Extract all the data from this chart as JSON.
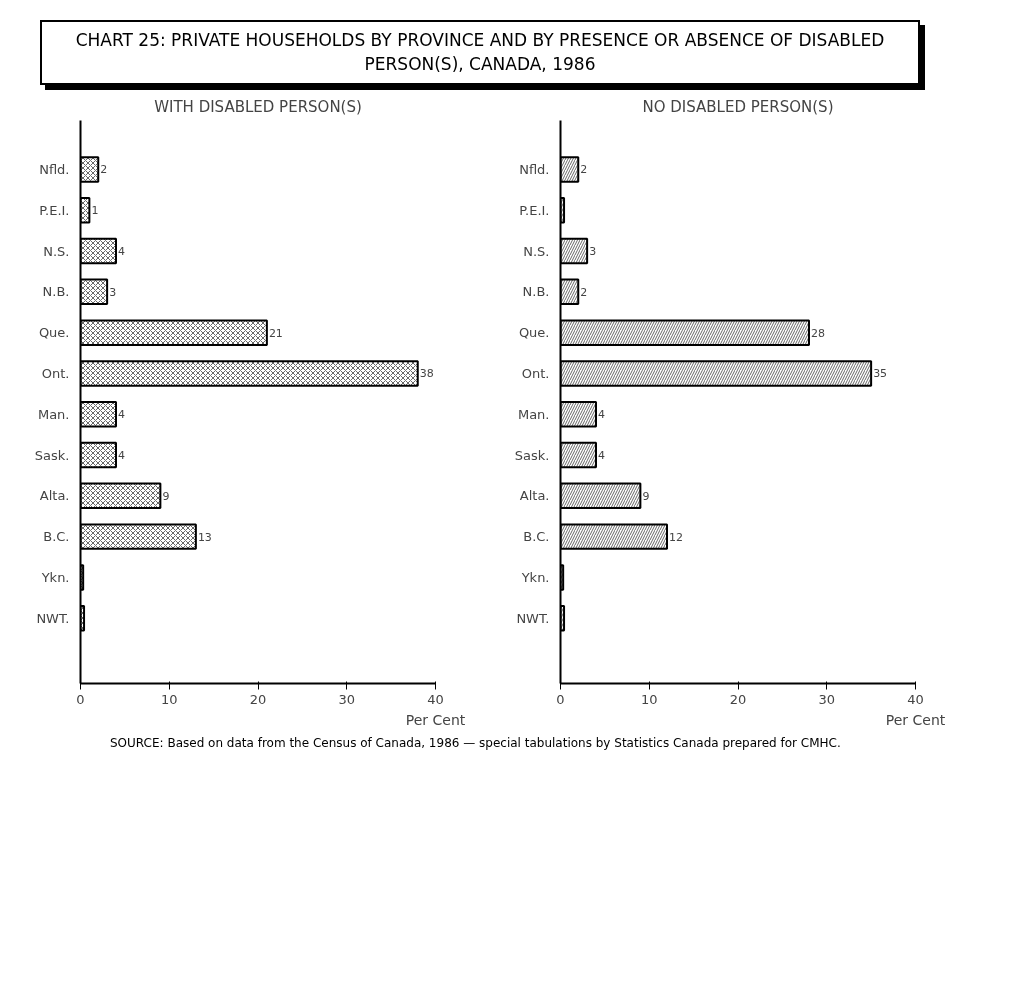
{
  "chart_data": [
    {
      "type": "bar",
      "orientation": "horizontal",
      "title": "WITH DISABLED PERSON(S)",
      "xlabel": "Per Cent",
      "categories": [
        "Nfld.",
        "P.E.I.",
        "N.S.",
        "N.B.",
        "Que.",
        "Ont.",
        "Man.",
        "Sask.",
        "Alta.",
        "B.C.",
        "Ykn.",
        "NWT."
      ],
      "values": [
        2,
        1,
        4,
        3,
        21,
        38,
        4,
        4,
        9,
        13,
        0.3,
        0.4
      ],
      "value_labels": [
        "2",
        "1",
        "4",
        "3",
        "21",
        "38",
        "4",
        "4",
        "9",
        "13",
        null,
        null
      ],
      "color": "#000000",
      "xlim": [
        0,
        40
      ],
      "xticks": [
        0,
        10,
        20,
        30,
        40
      ],
      "grid": false,
      "annotations": [
        "CHART 25: PRIVATE HOUSEHOLDS BY PROVINCE AND BY PRESENCE OR ABSENCE OF DISABLED PERSON(S), CANADA, 1986",
        "SOURCE: Based on data from the Census of Canada, 1986 — special tabulations by Statistics Canada prepared for CMHC."
      ]
    },
    {
      "type": "bar",
      "orientation": "horizontal",
      "title": "NO DISABLED PERSON(S)",
      "xlabel": "Per Cent",
      "categories": [
        "Nfld.",
        "P.E.I.",
        "N.S.",
        "N.B.",
        "Que.",
        "Ont.",
        "Man.",
        "Sask.",
        "Alta.",
        "B.C.",
        "Ykn.",
        "NWT."
      ],
      "values": [
        2,
        0.4,
        3,
        2,
        28,
        35,
        4,
        4,
        9,
        12,
        0.3,
        0.4
      ],
      "value_labels": [
        "2",
        null,
        "3",
        "2",
        "28",
        "35",
        "4",
        "4",
        "9",
        "12",
        null,
        null
      ],
      "color": "#000000",
      "xlim": [
        0,
        40
      ],
      "xticks": [
        0,
        10,
        20,
        30,
        40
      ],
      "grid": false
    }
  ]
}
